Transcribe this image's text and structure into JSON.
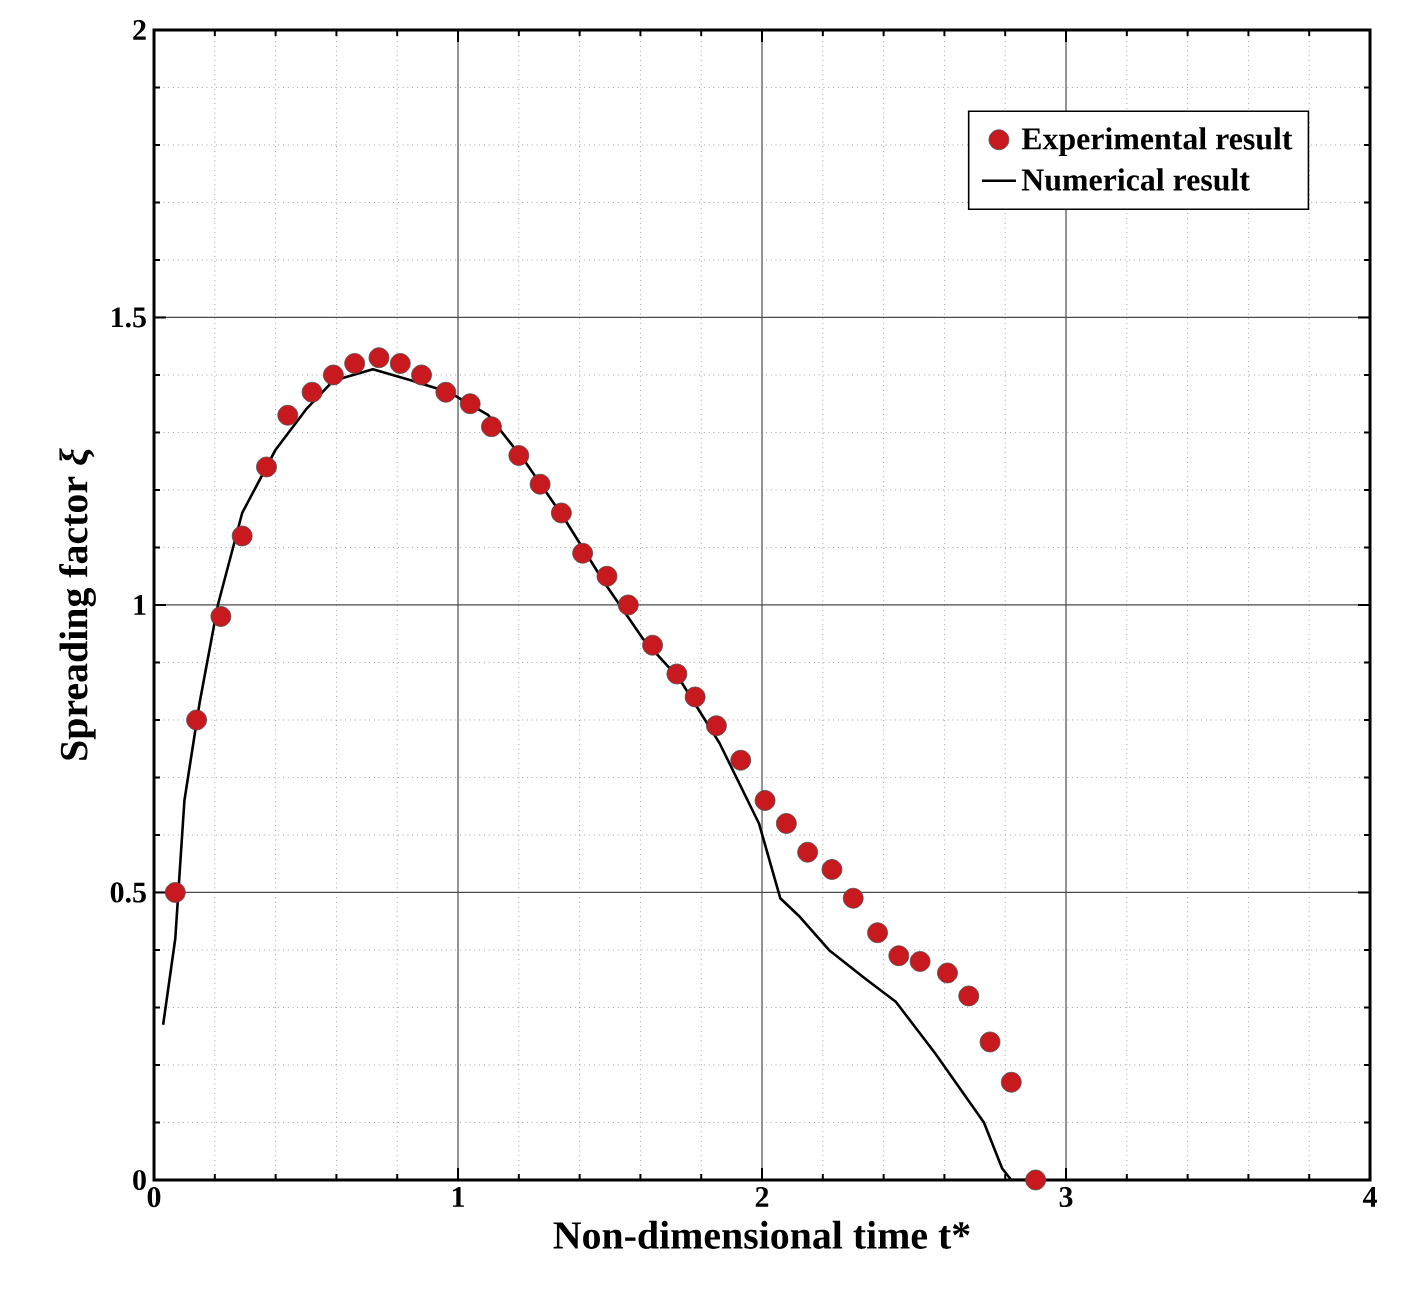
{
  "chart_data": {
    "type": "scatter",
    "xlabel": "Non-dimensional time t*",
    "ylabel": "Spreading factor *ξ*",
    "xlim": [
      0,
      4
    ],
    "ylim": [
      0,
      2
    ],
    "xticks": [
      0,
      1,
      2,
      3,
      4
    ],
    "yticks": [
      0,
      0.5,
      1,
      1.5,
      2
    ],
    "grid": true,
    "legend": "top right",
    "series": [
      {
        "name": "Experimental result",
        "marker": "circle",
        "color": "#c8191e",
        "x": [
          0.07,
          0.14,
          0.22,
          0.29,
          0.37,
          0.44,
          0.52,
          0.59,
          0.66,
          0.74,
          0.81,
          0.88,
          0.96,
          1.04,
          1.11,
          1.2,
          1.27,
          1.34,
          1.41,
          1.49,
          1.56,
          1.64,
          1.72,
          1.78,
          1.85,
          1.93,
          2.01,
          2.08,
          2.15,
          2.23,
          2.3,
          2.38,
          2.45,
          2.52,
          2.61,
          2.68,
          2.75,
          2.82,
          2.9
        ],
        "values": [
          0.5,
          0.8,
          0.98,
          1.12,
          1.24,
          1.33,
          1.37,
          1.4,
          1.42,
          1.43,
          1.42,
          1.4,
          1.37,
          1.35,
          1.31,
          1.26,
          1.21,
          1.16,
          1.09,
          1.05,
          1.0,
          0.93,
          0.88,
          0.84,
          0.79,
          0.73,
          0.66,
          0.62,
          0.57,
          0.54,
          0.49,
          0.43,
          0.39,
          0.38,
          0.36,
          0.32,
          0.24,
          0.17,
          0.0
        ]
      },
      {
        "name": "Numerical result",
        "type": "line",
        "marker": "none",
        "line_style": "solid",
        "color": "#000000",
        "x": [
          0.03,
          0.07,
          0.1,
          0.15,
          0.21,
          0.29,
          0.4,
          0.5,
          0.59,
          0.72,
          0.85,
          0.97,
          1.1,
          1.22,
          1.35,
          1.48,
          1.61,
          1.73,
          1.86,
          1.99,
          2.06,
          2.12,
          2.22,
          2.34,
          2.44,
          2.57,
          2.73,
          2.79,
          2.82,
          2.88
        ],
        "values": [
          0.27,
          0.42,
          0.66,
          0.83,
          1.0,
          1.16,
          1.27,
          1.34,
          1.39,
          1.41,
          1.39,
          1.37,
          1.33,
          1.25,
          1.15,
          1.04,
          0.94,
          0.87,
          0.76,
          0.62,
          0.49,
          0.46,
          0.4,
          0.35,
          0.31,
          0.22,
          0.1,
          0.02,
          0.0,
          0.0
        ]
      }
    ]
  }
}
